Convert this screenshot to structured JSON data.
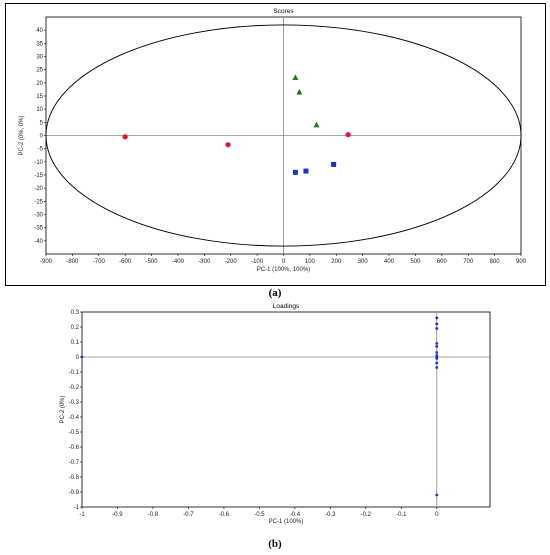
{
  "captions": {
    "a": "(a)",
    "b": "(b)"
  },
  "chart_data": [
    {
      "type": "scatter",
      "title": "Scores",
      "xlabel": "PC-1 (100%, 100%)",
      "ylabel": "PC-2 (0%, 0%)",
      "xlim": [
        -900,
        900
      ],
      "ylim": [
        -45,
        45
      ],
      "xticks": [
        -900,
        -800,
        -700,
        -600,
        -500,
        -400,
        -300,
        -200,
        -100,
        0,
        100,
        200,
        300,
        400,
        500,
        600,
        700,
        800,
        900
      ],
      "yticks": [
        40,
        35,
        30,
        25,
        20,
        15,
        10,
        5,
        0,
        -5,
        -10,
        -15,
        -20,
        -25,
        -30,
        -35,
        -40
      ],
      "grid": false,
      "ellipse": {
        "rx": 900,
        "ry": 42
      },
      "series": [
        {
          "marker": "circle",
          "color": "#e8102a",
          "x": [
            -600,
            -210,
            245
          ],
          "y": [
            -0.5,
            -3.5,
            0.3
          ]
        },
        {
          "marker": "triangle",
          "color": "#1f7a1f",
          "x": [
            45,
            60,
            125
          ],
          "y": [
            22,
            16.5,
            4
          ]
        },
        {
          "marker": "square",
          "color": "#1a2fd6",
          "x": [
            45,
            85,
            190
          ],
          "y": [
            -14,
            -13.5,
            -11
          ]
        }
      ]
    },
    {
      "type": "scatter",
      "title": "Loadings",
      "xlabel": "PC-1 (100%)",
      "ylabel": "PC-2 (0%)",
      "xlim": [
        -1,
        0.15
      ],
      "ylim": [
        -1,
        0.3
      ],
      "xticks": [
        -1,
        -0.9,
        -0.8,
        -0.7,
        -0.6,
        -0.5,
        -0.4,
        -0.3,
        -0.2,
        -0.1,
        0
      ],
      "yticks": [
        0.3,
        0.2,
        0.1,
        0,
        -0.1,
        -0.2,
        -0.3,
        -0.4,
        -0.5,
        -0.6,
        -0.7,
        -0.8,
        -0.9,
        -1
      ],
      "grid": false,
      "series": [
        {
          "marker": "dot",
          "color": "#1a2fd6",
          "x": [
            -1,
            0,
            0,
            0,
            0,
            0,
            0,
            0,
            0,
            0,
            0,
            0,
            0
          ],
          "y": [
            0,
            0.26,
            0.22,
            0.19,
            0.09,
            0.07,
            0.03,
            0.01,
            -0.01,
            -0.04,
            -0.07,
            0,
            -0.92
          ]
        }
      ]
    }
  ]
}
